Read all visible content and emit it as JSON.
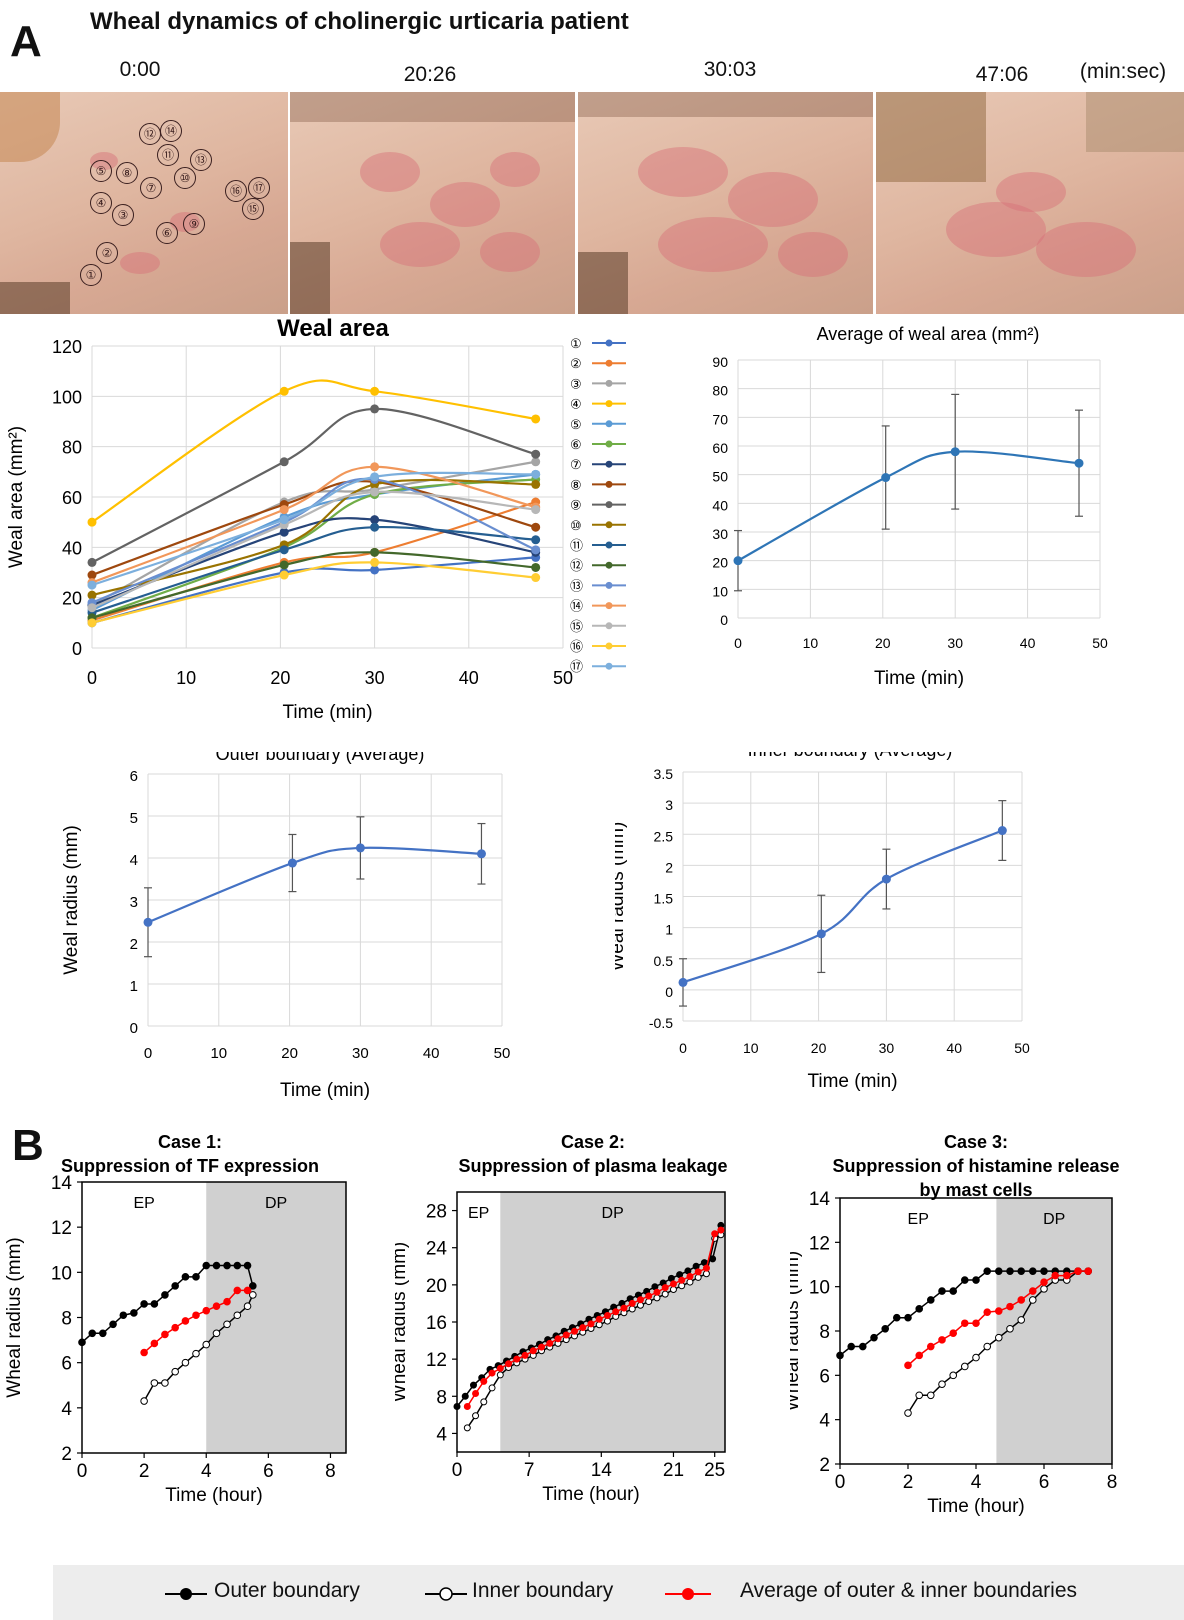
{
  "panel_a": {
    "letter": "A",
    "title": "Wheal dynamics of cholinergic urticaria patient",
    "time_labels": [
      "0:00",
      "20:26",
      "30:03",
      "47:06"
    ],
    "time_unit": "(min:sec)",
    "wheal_markers": [
      "①",
      "②",
      "③",
      "④",
      "⑤",
      "⑥",
      "⑦",
      "⑧",
      "⑨",
      "⑩",
      "⑪",
      "⑫",
      "⑬",
      "⑭",
      "⑮",
      "⑯",
      "⑰"
    ]
  },
  "panel_b": {
    "letter": "B",
    "legend": {
      "outer": "Outer boundary",
      "inner": "Inner boundary",
      "average": "Average of outer & inner boundaries"
    }
  },
  "colors": {
    "blue_line": "#4472c4",
    "steel_line": "#2e75b6",
    "black": "#000000",
    "red": "#ff0000",
    "shade": "#d0d0d0",
    "error_bar": "#555555"
  },
  "chart_data": [
    {
      "id": "weal-area",
      "type": "line",
      "title": "Weal area",
      "xlabel": "Time (min)",
      "ylabel": "Weal area (mm²)",
      "xlim": [
        0,
        50
      ],
      "ylim": [
        0,
        120
      ],
      "xticks": [
        0,
        10,
        20,
        30,
        40,
        50
      ],
      "yticks": [
        0,
        20,
        40,
        60,
        80,
        100,
        120
      ],
      "grid": true,
      "legend_position": "right",
      "x": [
        0,
        20.4,
        30,
        47.1
      ],
      "series": [
        {
          "name": "①",
          "color": "#4472c4",
          "values": [
            10,
            30,
            31,
            36
          ]
        },
        {
          "name": "②",
          "color": "#ed7d31",
          "values": [
            11,
            34,
            38,
            58
          ]
        },
        {
          "name": "③",
          "color": "#a5a5a5",
          "values": [
            17,
            58,
            63,
            74
          ]
        },
        {
          "name": "④",
          "color": "#ffc000",
          "values": [
            50,
            102,
            102,
            91
          ]
        },
        {
          "name": "⑤",
          "color": "#5b9bd5",
          "values": [
            15,
            52,
            61,
            69
          ]
        },
        {
          "name": "⑥",
          "color": "#70ad47",
          "values": [
            12,
            40,
            61,
            67
          ]
        },
        {
          "name": "⑦",
          "color": "#264478",
          "values": [
            17,
            46,
            51,
            38
          ]
        },
        {
          "name": "⑧",
          "color": "#9e480e",
          "values": [
            29,
            57,
            66,
            48
          ]
        },
        {
          "name": "⑨",
          "color": "#636363",
          "values": [
            34,
            74,
            95,
            77
          ]
        },
        {
          "name": "⑩",
          "color": "#997300",
          "values": [
            21,
            41,
            65,
            65
          ]
        },
        {
          "name": "⑪",
          "color": "#255e91",
          "values": [
            14,
            39,
            48,
            43
          ]
        },
        {
          "name": "⑫",
          "color": "#43682b",
          "values": [
            12,
            33,
            38,
            32
          ]
        },
        {
          "name": "⑬",
          "color": "#698ed0",
          "values": [
            18,
            50,
            67,
            39
          ]
        },
        {
          "name": "⑭",
          "color": "#f1975a",
          "values": [
            26,
            55,
            72,
            56
          ]
        },
        {
          "name": "⑮",
          "color": "#b7b7b7",
          "values": [
            16,
            49,
            62,
            55
          ]
        },
        {
          "name": "⑯",
          "color": "#ffcd33",
          "values": [
            10,
            29,
            34,
            28
          ]
        },
        {
          "name": "⑰",
          "color": "#7cafdd",
          "values": [
            25,
            51,
            68,
            69
          ]
        }
      ]
    },
    {
      "id": "average-area",
      "type": "line",
      "title": "Average of weal area (mm²)",
      "xlabel": "Time (min)",
      "ylabel": "",
      "xlim": [
        0,
        50
      ],
      "ylim": [
        0,
        90
      ],
      "xticks": [
        0,
        10,
        20,
        30,
        40,
        50
      ],
      "yticks": [
        0,
        10,
        20,
        30,
        40,
        50,
        60,
        70,
        80,
        90
      ],
      "grid": true,
      "x": [
        0,
        20.4,
        30,
        47.1
      ],
      "series": [
        {
          "values": [
            20,
            49,
            58,
            54
          ],
          "error": [
            10.5,
            18,
            20,
            18.5
          ],
          "color": "#2e75b6"
        }
      ]
    },
    {
      "id": "outer-boundary",
      "type": "line",
      "title": "Outer boundary (Average)",
      "xlabel": "Time (min)",
      "ylabel": "Weal radius (mm)",
      "xlim": [
        0,
        50
      ],
      "ylim": [
        0,
        6
      ],
      "xticks": [
        0,
        10,
        20,
        30,
        40,
        50
      ],
      "yticks": [
        0,
        1,
        2,
        3,
        4,
        5,
        6
      ],
      "grid": true,
      "x": [
        0,
        20.4,
        30,
        47.1
      ],
      "series": [
        {
          "values": [
            2.47,
            3.88,
            4.24,
            4.1
          ],
          "error": [
            0.82,
            0.68,
            0.74,
            0.72
          ],
          "color": "#4472c4"
        }
      ]
    },
    {
      "id": "inner-boundary",
      "type": "line",
      "title": "Inner boundary (Average)",
      "xlabel": "Time (min)",
      "ylabel": "Weal radius (mm)",
      "xlim": [
        0,
        50
      ],
      "ylim": [
        -0.5,
        3.5
      ],
      "xticks": [
        0,
        10,
        20,
        30,
        40,
        50
      ],
      "yticks": [
        -0.5,
        0,
        0.5,
        1,
        1.5,
        2,
        2.5,
        3,
        3.5
      ],
      "grid": true,
      "x": [
        0,
        20.4,
        30,
        47.1
      ],
      "series": [
        {
          "values": [
            0.12,
            0.9,
            1.78,
            2.56
          ],
          "error": [
            0.38,
            0.62,
            0.48,
            0.48
          ],
          "color": "#4472c4"
        }
      ]
    },
    {
      "id": "case-1",
      "type": "line",
      "title": "Case 1:",
      "subtitle": "Suppression of TF expression",
      "xlabel": "Time (hour)",
      "ylabel": "Wheal radius (mm)",
      "xlim": [
        0,
        8.5
      ],
      "ylim": [
        2,
        14
      ],
      "xticks": [
        0,
        2,
        4,
        6,
        8
      ],
      "yticks": [
        2,
        4,
        6,
        8,
        10,
        12,
        14
      ],
      "regions": [
        {
          "label": "EP",
          "from": 0,
          "to": 4
        },
        {
          "label": "DP",
          "from": 4,
          "to": 8.5
        }
      ],
      "series": [
        {
          "name": "Outer boundary",
          "x": [
            0,
            0.33,
            0.67,
            1,
            1.33,
            1.67,
            2,
            2.33,
            2.67,
            3,
            3.33,
            3.67,
            4,
            4.33,
            4.67,
            5,
            5.33,
            5.5
          ],
          "values": [
            6.9,
            7.3,
            7.3,
            7.7,
            8.1,
            8.2,
            8.6,
            8.6,
            9.0,
            9.4,
            9.8,
            9.8,
            10.3,
            10.3,
            10.3,
            10.3,
            10.3,
            9.4
          ]
        },
        {
          "name": "Inner boundary",
          "x": [
            2,
            2.33,
            2.67,
            3,
            3.33,
            3.67,
            4,
            4.33,
            4.67,
            5,
            5.33,
            5.5
          ],
          "values": [
            4.3,
            5.1,
            5.1,
            5.6,
            6.0,
            6.4,
            6.8,
            7.3,
            7.7,
            8.1,
            8.5,
            9.0
          ]
        },
        {
          "name": "Average of outer & inner boundaries",
          "x": [
            2,
            2.33,
            2.67,
            3,
            3.33,
            3.67,
            4,
            4.33,
            4.67,
            5,
            5.33
          ],
          "values": [
            6.45,
            6.85,
            7.25,
            7.55,
            7.85,
            8.1,
            8.3,
            8.5,
            8.7,
            9.2,
            9.2
          ]
        }
      ]
    },
    {
      "id": "case-2",
      "type": "line",
      "title": "Case 2:",
      "subtitle": "Suppression of plasma leakage",
      "xlabel": "Time (hour)",
      "ylabel": "Wheal radius (mm)",
      "xlim": [
        0,
        26
      ],
      "ylim": [
        2,
        30
      ],
      "xticks": [
        0,
        7,
        14,
        21,
        25
      ],
      "yticks": [
        4,
        8,
        12,
        16,
        20,
        24,
        28
      ],
      "regions": [
        {
          "label": "EP",
          "from": 0,
          "to": 4.2
        },
        {
          "label": "DP",
          "from": 4.2,
          "to": 26
        }
      ],
      "series": [
        {
          "name": "Outer boundary",
          "x": [
            0,
            0.8,
            1.6,
            2.4,
            3.2,
            4,
            4.8,
            5.6,
            6.4,
            7.2,
            8,
            8.8,
            9.6,
            10.4,
            11.2,
            12,
            12.8,
            13.6,
            14.4,
            15.2,
            16,
            16.8,
            17.6,
            18.4,
            19.2,
            20,
            20.8,
            21.6,
            22.4,
            23.2,
            24,
            24.8,
            25.6
          ],
          "values": [
            6.9,
            8.0,
            9.2,
            10.0,
            10.9,
            11.3,
            11.8,
            12.3,
            12.8,
            13.2,
            13.6,
            14.1,
            14.5,
            15.0,
            15.4,
            15.8,
            16.3,
            16.7,
            17.1,
            17.6,
            18.0,
            18.5,
            18.9,
            19.3,
            19.8,
            20.2,
            20.7,
            21.1,
            21.5,
            22.0,
            22.4,
            22.8,
            26.4
          ]
        },
        {
          "name": "Inner boundary",
          "x": [
            1,
            1.8,
            2.6,
            3.4,
            4.2,
            5,
            5.8,
            6.6,
            7.4,
            8.2,
            9,
            9.8,
            10.6,
            11.4,
            12.2,
            13,
            13.8,
            14.6,
            15.4,
            16.2,
            17,
            17.8,
            18.6,
            19.4,
            20.2,
            21,
            21.8,
            22.6,
            23.4,
            24.2,
            25,
            25.6
          ],
          "values": [
            4.6,
            5.9,
            7.4,
            8.9,
            10.3,
            11.1,
            11.6,
            12.0,
            12.4,
            12.9,
            13.3,
            13.7,
            14.1,
            14.5,
            14.9,
            15.3,
            15.7,
            16.1,
            16.6,
            17.0,
            17.4,
            17.8,
            18.2,
            18.6,
            19.0,
            19.5,
            19.9,
            20.3,
            20.8,
            21.2,
            25.0,
            25.4
          ]
        },
        {
          "name": "Average of outer & inner boundaries",
          "x": [
            1,
            1.8,
            2.6,
            3.4,
            4.2,
            5,
            5.8,
            6.6,
            7.4,
            8.2,
            9,
            9.8,
            10.6,
            11.4,
            12.2,
            13,
            13.8,
            14.6,
            15.4,
            16.2,
            17,
            17.8,
            18.6,
            19.4,
            20.2,
            21,
            21.8,
            22.6,
            23.4,
            24.2,
            25,
            25.6
          ],
          "values": [
            6.9,
            8.3,
            9.6,
            10.5,
            11.0,
            11.5,
            12.0,
            12.4,
            12.9,
            13.3,
            13.7,
            14.2,
            14.6,
            15.0,
            15.4,
            15.8,
            16.3,
            16.7,
            17.1,
            17.5,
            18.0,
            18.4,
            18.8,
            19.2,
            19.7,
            20.1,
            20.5,
            20.9,
            21.4,
            21.8,
            25.5,
            25.9
          ]
        }
      ]
    },
    {
      "id": "case-3",
      "type": "line",
      "title": "Case 3:",
      "subtitle": "Suppression of histamine release by mast cells",
      "xlabel": "Time (hour)",
      "ylabel": "Wheal radius (mm)",
      "xlim": [
        0,
        8
      ],
      "ylim": [
        2,
        14
      ],
      "xticks": [
        0,
        2,
        4,
        6,
        8
      ],
      "yticks": [
        2,
        4,
        6,
        8,
        10,
        12,
        14
      ],
      "regions": [
        {
          "label": "EP",
          "from": 0,
          "to": 4.6
        },
        {
          "label": "DP",
          "from": 4.6,
          "to": 8
        }
      ],
      "series": [
        {
          "name": "Outer boundary",
          "x": [
            0,
            0.33,
            0.67,
            1,
            1.33,
            1.67,
            2,
            2.33,
            2.67,
            3,
            3.33,
            3.67,
            4,
            4.33,
            4.67,
            5,
            5.33,
            5.67,
            6,
            6.33,
            6.67,
            7,
            7.3
          ],
          "values": [
            6.9,
            7.3,
            7.3,
            7.7,
            8.1,
            8.6,
            8.6,
            9.0,
            9.4,
            9.8,
            9.8,
            10.3,
            10.3,
            10.7,
            10.7,
            10.7,
            10.7,
            10.7,
            10.7,
            10.7,
            10.7,
            10.7,
            10.7
          ]
        },
        {
          "name": "Inner boundary",
          "x": [
            2,
            2.33,
            2.67,
            3,
            3.33,
            3.67,
            4,
            4.33,
            4.67,
            5,
            5.33,
            5.67,
            6,
            6.33,
            6.67,
            7,
            7.3
          ],
          "values": [
            4.3,
            5.1,
            5.1,
            5.6,
            6.0,
            6.4,
            6.8,
            7.3,
            7.7,
            8.1,
            8.5,
            9.4,
            9.9,
            10.3,
            10.3,
            10.7,
            10.7
          ]
        },
        {
          "name": "Average of outer & inner boundaries",
          "x": [
            2,
            2.33,
            2.67,
            3,
            3.33,
            3.67,
            4,
            4.33,
            4.67,
            5,
            5.33,
            5.67,
            6,
            6.33,
            6.67,
            7,
            7.3
          ],
          "values": [
            6.45,
            6.9,
            7.3,
            7.6,
            7.9,
            8.35,
            8.35,
            8.85,
            8.9,
            9.1,
            9.4,
            9.8,
            10.2,
            10.5,
            10.5,
            10.7,
            10.7
          ]
        }
      ]
    }
  ]
}
